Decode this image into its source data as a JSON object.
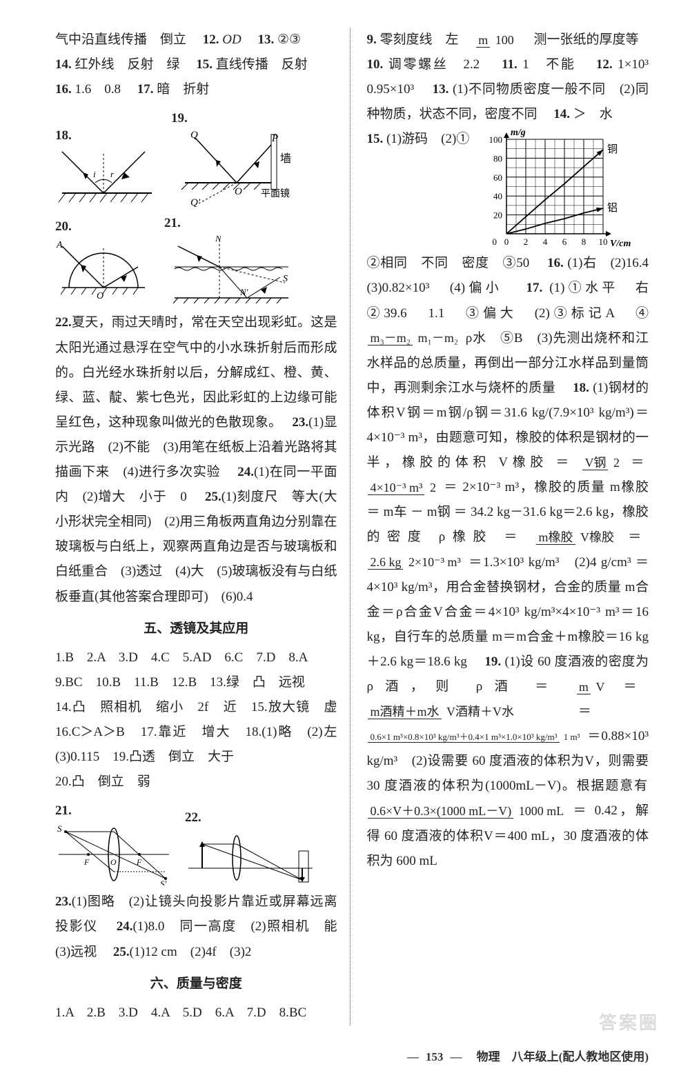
{
  "left": {
    "l1a": "气中沿直线传播　倒立　",
    "l1b": "12.",
    "l1c": "OD　",
    "l1d": "13.",
    "l1e": "②③",
    "l2a": "14.",
    "l2b": "红外线　反射　绿　",
    "l2c": "15.",
    "l2d": "直线传播　反射",
    "l3a": "16.",
    "l3b": "1.6　0.8　",
    "l3c": "17.",
    "l3d": "暗　折射",
    "fig18": "18.",
    "fig19": "19.",
    "fig20": "20.",
    "fig21": "21.",
    "fig19_wall": "墙",
    "fig19_mirror": "平面镜",
    "fig19_P": "P",
    "fig19_Q": "Q",
    "fig19_Qp": "Q'",
    "fig19_O": "O",
    "fig20_A": "A",
    "fig20_O": "O",
    "fig21_N": "N",
    "fig21_Np": "N'",
    "fig21_S": "S",
    "p22a": "22.",
    "p22b": "夏天，雨过天晴时，常在天空出现彩虹。这是太阳光通过悬浮在空气中的小水珠折射后而形成的。白光经水珠折射以后，分解成红、橙、黄、绿、蓝、靛、紫七色光，因此彩虹的上边缘可能呈红色，这种现象叫做光的色散现象。　",
    "p23a": "23.",
    "p23b": "(1)显示光路　(2)不能　(3)用笔在纸板上沿着光路将其描画下来　(4)进行多次实验　",
    "p24a": "24.",
    "p24b": "(1)在同一平面内　(2)增大　小于　0　",
    "p25a": "25.",
    "p25b": "(1)刻度尺　等大(大小形状完全相同)　(2)用三角板两直角边分别靠在玻璃板与白纸上，观察两直角边是否与玻璃板和白纸重合　(3)透过　(4)大　(5)玻璃板没有与白纸板垂直(其他答案合理即可)　(6)0.4",
    "sec5": "五、透镜及其应用",
    "s5l1": "1.B　2.A　3.D　4.C　5.AD　6.C　7.D　8.A",
    "s5l2": "9.BC　10.B　11.B　12.B　13.绿　凸　远视",
    "s5l3": "14.凸　照相机　缩小　2f　近　15.放大镜　虚　16.C＞A＞B　17.靠近　增大　18.(1)略　(2)左　(3)0.115　19.凸透　倒立　大于",
    "s5l4": "20.凸　倒立　弱",
    "fig21b": "21.",
    "fig22": "22.",
    "fig21b_S": "S",
    "fig21b_Sp": "S'",
    "fig21b_F": "F",
    "fig21b_O": "O",
    "p23c": "23.",
    "p23d": "(1)图略　(2)让镜头向投影片靠近或屏幕远离投影仪　",
    "p24c": "24.",
    "p24d": "(1)8.0　同一高度　(2)照相机　能　(3)远视　",
    "p25c": "25.",
    "p25d": "(1)12 cm　(2)4f　(3)2",
    "sec6": "六、质量与密度",
    "s6l1": "1.A　2.B　3.D　4.A　5.D　6.A　7.D　8.BC"
  },
  "right": {
    "r1a": "9.",
    "r1b": "零刻度线　左　",
    "frac1_num": "m",
    "frac1_den": "100",
    "r1c": "　测一张纸的厚度等",
    "r2a": "10.",
    "r2b": "调零螺丝　2.2　",
    "r2c": "11.",
    "r2d": "1　不能　",
    "r2e": "12.",
    "r2f": "1×10³　0.95×10³　",
    "r3a": "13.",
    "r3b": "(1)不同物质密度一般不同　(2)同种物质，状态不同，密度不同　",
    "r3c": "14.",
    "r3d": "＞　水",
    "r4a": "15.",
    "r4b": "(1)游码　(2)①",
    "chart": {
      "ylabel": "m/g",
      "xlabel": "V/cm³",
      "ymin": 0,
      "ymax": 100,
      "ystep": 20,
      "xmin": 0,
      "xmax": 10,
      "xstep": 2,
      "yticklabels": [
        "0",
        "20",
        "40",
        "60",
        "80",
        "100"
      ],
      "xticklabels": [
        "0",
        "2",
        "4",
        "6",
        "8",
        "10"
      ],
      "series": [
        {
          "name": "铜",
          "color": "#000",
          "points": [
            [
              0,
              0
            ],
            [
              2,
              18
            ],
            [
              4,
              36
            ],
            [
              6,
              53
            ],
            [
              8,
              71
            ],
            [
              10,
              89
            ]
          ]
        },
        {
          "name": "铝",
          "color": "#000",
          "points": [
            [
              0,
              0
            ],
            [
              2,
              5
            ],
            [
              4,
              11
            ],
            [
              6,
              16
            ],
            [
              8,
              22
            ],
            [
              10,
              27
            ]
          ]
        }
      ],
      "grid_color": "#000",
      "background": "#fff"
    },
    "r5": "②相同　不同　密度　③50　",
    "r5b": "16.",
    "r5c": "(1)右　(2)16.4　(3)0.82×10³　(4)偏小　",
    "r6a": "17.",
    "r6b": "(1)①水平　右　②39.6　1.1　③偏大　(2)③标记A　④",
    "frac2_num": "m₃－m₂",
    "frac2_den": "m₁－m₂",
    "r6c": "ρ水　⑤B　(3)先测出烧杯和江水样品的总质量，再倒出一部分江水样品到量筒中，再测剩余江水与烧杯的质量　",
    "r7a": "18.",
    "r7b": "(1)钢材的体积V钢＝m钢/ρ钢＝31.6 kg/(7.9×10³ kg/m³)＝4×10⁻³ m³，由题意可知，橡胶的体积是钢材的一半，橡胶的体积 V橡胶 ＝ ",
    "frac3_num": "V钢",
    "frac3_den": "2",
    "r7c": " ＝ ",
    "frac4_num": "4×10⁻³ m³",
    "frac4_den": "2",
    "r7d": " ＝ 2×10⁻³ m³，橡胶的质量 m橡胶 ＝ m车 － m钢 ＝ 34.2 kg－31.6 kg＝2.6 kg，橡胶的密度 ρ橡胶 ＝ ",
    "frac5_num": "m橡胶",
    "frac5_den": "V橡胶",
    "r7e": " ＝ ",
    "frac6_num": "2.6 kg",
    "frac6_den": "2×10⁻³ m³",
    "r7f": " ＝1.3×10³ kg/m³　(2)4 g/cm³ ＝4×10³ kg/m³，用合金替换钢材，合金的质量 m合金＝ρ合金V合金＝4×10³ kg/m³×4×10⁻³ m³＝16 kg，自行车的总质量 m＝m合金＋m橡胶＝16 kg＋2.6 kg＝18.6 kg　",
    "r8a": "19.",
    "r8b": "(1)设 60 度酒液的密度为 ρ酒，则 ρ酒 ＝ ",
    "frac7_num": "m",
    "frac7_den": "V",
    "r8c": " ＝ ",
    "frac8_num": "m酒精＋m水",
    "frac8_den": "V酒精＋V水",
    "r8d": " ＝ ",
    "frac9_num": "0.6×1 m³×0.8×10³ kg/m³＋0.4×1 m³×1.0×10³ kg/m³",
    "frac9_den": "1 m³",
    "r8e": " ＝0.88×10³ kg/m³　(2)设需要 60 度酒液的体积为V，则需要 30 度酒液的体积为(1000mL－V)。根据题意有 ",
    "frac10_num": "0.6×V＋0.3×(1000 mL－V)",
    "frac10_den": "1000 mL",
    "r8f": " ＝ 0.42，解得 60 度酒液的体积V＝400 mL，30 度酒液的体积为 600 mL"
  },
  "footer": {
    "page": "153",
    "text": "物理　八年级上(配人教地区使用)"
  },
  "watermark": "答案圈"
}
